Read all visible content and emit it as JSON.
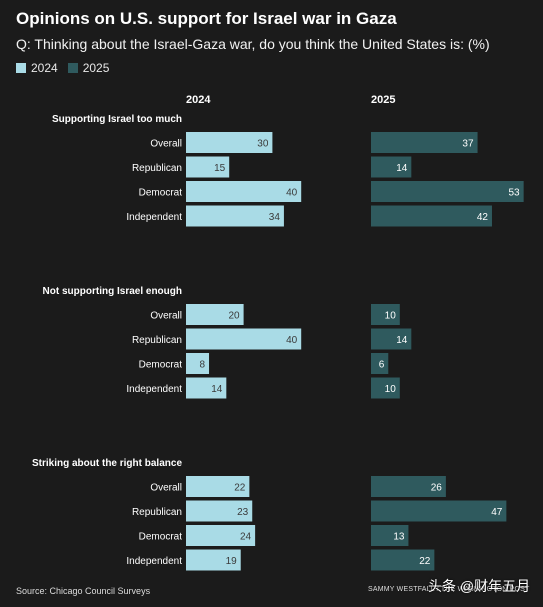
{
  "header": {
    "title": "Opinions on U.S. support for Israel     war in Gaza",
    "subtitle": "Q: Thinking about the Israel-Gaza war, do you think the United States is: (%)"
  },
  "colors": {
    "background": "#1b1b1b",
    "series_2024": "#a9dbe6",
    "series_2025": "#2f5a5e",
    "text": "#ffffff"
  },
  "chart_data": {
    "type": "bar",
    "orientation": "horizontal",
    "column_headers": [
      "2024",
      "2025"
    ],
    "legend": [
      {
        "name": "2024",
        "color": "#a9dbe6"
      },
      {
        "name": "2025",
        "color": "#2f5a5e"
      }
    ],
    "legend_placement": "top-left",
    "categories": [
      "Overall",
      "Republican",
      "Democrat",
      "Independent"
    ],
    "value_max": 55,
    "groups": [
      {
        "title": "Supporting Israel too much",
        "values_2024": [
          30,
          15,
          40,
          34
        ],
        "values_2025": [
          37,
          14,
          53,
          42
        ]
      },
      {
        "title": "Not supporting Israel enough",
        "values_2024": [
          20,
          40,
          8,
          14
        ],
        "values_2025": [
          10,
          14,
          6,
          10
        ]
      },
      {
        "title": "Striking about the right balance",
        "values_2024": [
          22,
          23,
          24,
          19
        ],
        "values_2025": [
          26,
          47,
          13,
          22
        ]
      }
    ]
  },
  "footer": {
    "source": "Source: Chicago Council Surveys",
    "credit": "SAMMY WESTFALL / THE WASHINGTON POST",
    "watermark": "头条 @财年五月"
  }
}
